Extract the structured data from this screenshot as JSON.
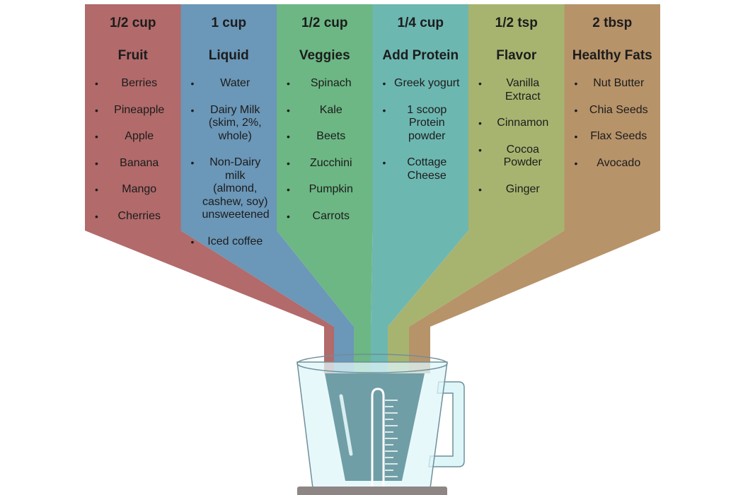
{
  "columns": [
    {
      "amount": "1/2 cup",
      "category": "Fruit",
      "color": "#b26a6a",
      "items": [
        "Berries",
        "Pineapple",
        "Apple",
        "Banana",
        "Mango",
        "Cherries"
      ]
    },
    {
      "amount": "1 cup",
      "category": "Liquid",
      "color": "#6b97b8",
      "items": [
        "Water",
        "Dairy Milk (skim, 2%, whole)",
        "Non-Dairy milk (almond, cashew, soy) unsweetened",
        "Iced coffee"
      ]
    },
    {
      "amount": "1/2 cup",
      "category": "Veggies",
      "color": "#6cb784",
      "items": [
        "Spinach",
        "Kale",
        "Beets",
        "Zucchini",
        "Pumpkin",
        "Carrots"
      ]
    },
    {
      "amount": "1/4 cup",
      "category": "Add Protein",
      "color": "#6db7b1",
      "items": [
        "Greek yogurt",
        "1 scoop Protein powder",
        "Cottage Cheese"
      ]
    },
    {
      "amount": "1/2 tsp",
      "category": "Flavor",
      "color": "#a7b470",
      "items": [
        "Vanilla Extract",
        "Cinnamon",
        "Cocoa Powder",
        "Ginger"
      ]
    },
    {
      "amount": "2 tbsp",
      "category": "Healthy Fats",
      "color": "#b7936a",
      "items": [
        "Nut Butter",
        "Chia Seeds",
        "Flax Seeds",
        "Avocado"
      ]
    }
  ],
  "blender": {
    "glass_color": "#dff6f9",
    "glass_stroke": "#6f8f99",
    "liquid_color": "#6f9ea6",
    "base_color": "#8e8585"
  }
}
